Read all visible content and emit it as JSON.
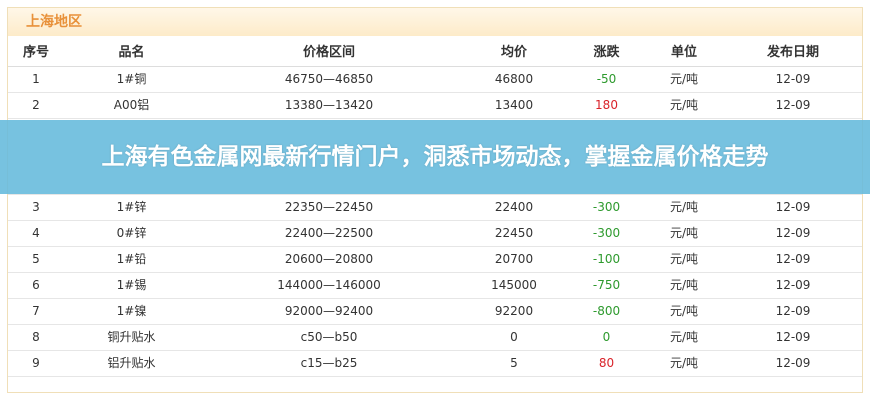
{
  "region_title": "上海地区",
  "columns": [
    "序号",
    "品名",
    "价格区间",
    "均价",
    "涨跌",
    "单位",
    "发布日期"
  ],
  "rows": [
    {
      "no": "1",
      "name": "1#铜",
      "range": "46750—46850",
      "avg": "46800",
      "change": "-50",
      "unit": "元/吨",
      "date": "12-09"
    },
    {
      "no": "2",
      "name": "A00铝",
      "range": "13380—13420",
      "avg": "13400",
      "change": "180",
      "unit": "元/吨",
      "date": "12-09"
    },
    {
      "no": "3",
      "name": "1#锌",
      "range": "22350—22450",
      "avg": "22400",
      "change": "-300",
      "unit": "元/吨",
      "date": "12-09"
    },
    {
      "no": "4",
      "name": "0#锌",
      "range": "22400—22500",
      "avg": "22450",
      "change": "-300",
      "unit": "元/吨",
      "date": "12-09"
    },
    {
      "no": "5",
      "name": "1#铅",
      "range": "20600—20800",
      "avg": "20700",
      "change": "-100",
      "unit": "元/吨",
      "date": "12-09"
    },
    {
      "no": "6",
      "name": "1#锡",
      "range": "144000—146000",
      "avg": "145000",
      "change": "-750",
      "unit": "元/吨",
      "date": "12-09"
    },
    {
      "no": "7",
      "name": "1#镍",
      "range": "92000—92400",
      "avg": "92200",
      "change": "-800",
      "unit": "元/吨",
      "date": "12-09"
    },
    {
      "no": "8",
      "name": "铜升贴水",
      "range": "c50—b50",
      "avg": "0",
      "change": "0",
      "unit": "元/吨",
      "date": "12-09"
    },
    {
      "no": "9",
      "name": "铝升贴水",
      "range": "c15—b25",
      "avg": "5",
      "change": "80",
      "unit": "元/吨",
      "date": "12-09"
    }
  ],
  "banner": "上海有色金属网最新行情门户，洞悉市场动态，掌握金属价格走势",
  "colors": {
    "up": "#d9232a",
    "down": "#2e9a2e",
    "region_title": "#e8913a",
    "banner": "#64b9dc"
  }
}
